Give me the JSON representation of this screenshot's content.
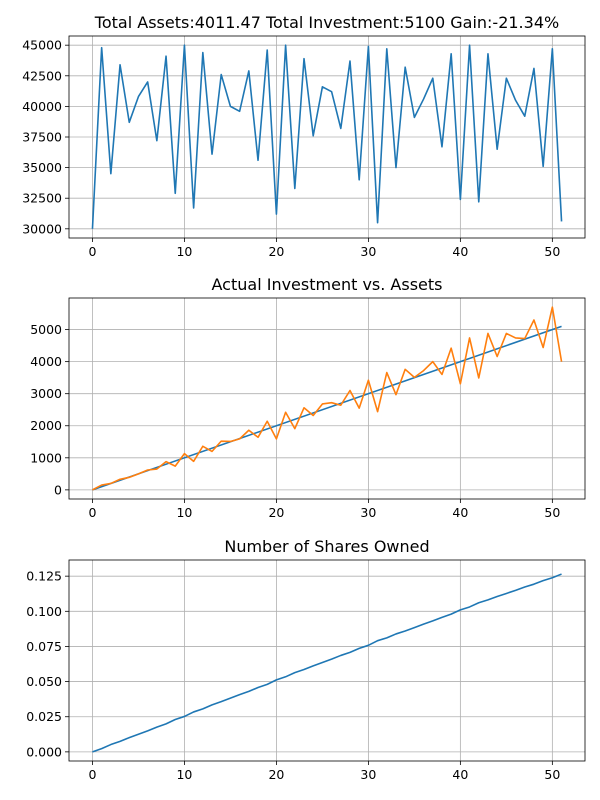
{
  "chart_data": [
    {
      "type": "line",
      "title": "Total Assets:4011.47  Total Investment:5100  Gain:-21.34%",
      "xlabel": "",
      "ylabel": "",
      "xlim": [
        -2.55,
        53.55
      ],
      "ylim": [
        29250,
        45750
      ],
      "grid": true,
      "x_ticks": [
        0,
        10,
        20,
        30,
        40,
        50
      ],
      "y_ticks": [
        30000,
        32500,
        35000,
        37500,
        40000,
        42500,
        45000
      ],
      "series": [
        {
          "color": "#1f77b4",
          "x": [
            0,
            1,
            2,
            3,
            4,
            5,
            6,
            7,
            8,
            9,
            10,
            11,
            12,
            13,
            14,
            15,
            16,
            17,
            18,
            19,
            20,
            21,
            22,
            23,
            24,
            25,
            26,
            27,
            28,
            29,
            30,
            31,
            32,
            33,
            34,
            35,
            36,
            37,
            38,
            39,
            40,
            41,
            42,
            43,
            44,
            45,
            46,
            47,
            48,
            49,
            50,
            51
          ],
          "y": [
            30000,
            44800,
            34500,
            43400,
            38700,
            40800,
            42000,
            37200,
            44100,
            32900,
            45000,
            31700,
            44400,
            36100,
            42600,
            40000,
            39600,
            42900,
            35600,
            44600,
            31200,
            45000,
            33300,
            43900,
            37600,
            41600,
            41200,
            38200,
            43700,
            34000,
            44900,
            30500,
            44700,
            35000,
            43200,
            39100,
            40600,
            42300,
            36700,
            44300,
            32400,
            45000,
            32200,
            44300,
            36500,
            42300,
            40500,
            39200,
            43100,
            35100,
            44700,
            30600
          ]
        }
      ]
    },
    {
      "type": "line",
      "title": "Actual Investment vs. Assets",
      "xlabel": "",
      "ylabel": "",
      "xlim": [
        -2.55,
        53.55
      ],
      "ylim": [
        -285,
        5985
      ],
      "grid": true,
      "x_ticks": [
        0,
        10,
        20,
        30,
        40,
        50
      ],
      "y_ticks": [
        0,
        1000,
        2000,
        3000,
        4000,
        5000
      ],
      "series": [
        {
          "color": "#1f77b4",
          "x": [
            0,
            51
          ],
          "y": [
            0,
            5100
          ]
        },
        {
          "color": "#ff7f0e",
          "x": [
            0,
            1,
            2,
            3,
            4,
            5,
            6,
            7,
            8,
            9,
            10,
            11,
            12,
            13,
            14,
            15,
            16,
            17,
            18,
            19,
            20,
            21,
            22,
            23,
            24,
            25,
            26,
            27,
            28,
            29,
            30,
            31,
            32,
            33,
            34,
            35,
            36,
            37,
            38,
            39,
            40,
            41,
            42,
            43,
            44,
            45,
            46,
            47,
            48,
            49,
            50,
            51
          ],
          "y": [
            0,
            150,
            200,
            330,
            390,
            500,
            620,
            650,
            880,
            740,
            1130,
            890,
            1360,
            1200,
            1520,
            1510,
            1590,
            1860,
            1640,
            2140,
            1590,
            2420,
            1910,
            2560,
            2320,
            2680,
            2720,
            2640,
            3100,
            2550,
            3420,
            2440,
            3660,
            2970,
            3760,
            3510,
            3720,
            4000,
            3600,
            4420,
            3310,
            4740,
            3490,
            4880,
            4160,
            4880,
            4740,
            4720,
            5300,
            4440,
            5700,
            4000
          ]
        }
      ]
    },
    {
      "type": "line",
      "title": "Number of Shares Owned",
      "xlabel": "",
      "ylabel": "",
      "xlim": [
        -2.55,
        53.55
      ],
      "ylim": [
        -0.0065,
        0.1365
      ],
      "grid": true,
      "x_ticks": [
        0,
        10,
        20,
        30,
        40,
        50
      ],
      "y_ticks": [
        0.0,
        0.025,
        0.05,
        0.075,
        0.1,
        0.125
      ],
      "y_tick_labels": [
        "0.000",
        "0.025",
        "0.050",
        "0.075",
        "0.100",
        "0.125"
      ],
      "series": [
        {
          "color": "#1f77b4",
          "x": [
            0,
            1,
            2,
            3,
            4,
            5,
            6,
            7,
            8,
            9,
            10,
            11,
            12,
            13,
            14,
            15,
            16,
            17,
            18,
            19,
            20,
            21,
            22,
            23,
            24,
            25,
            26,
            27,
            28,
            29,
            30,
            31,
            32,
            33,
            34,
            35,
            36,
            37,
            38,
            39,
            40,
            41,
            42,
            43,
            44,
            45,
            46,
            47,
            48,
            49,
            50,
            51
          ],
          "y": [
            0,
            0.0023,
            0.0052,
            0.0075,
            0.0101,
            0.0125,
            0.0149,
            0.0176,
            0.0199,
            0.023,
            0.0252,
            0.0284,
            0.0306,
            0.0334,
            0.0357,
            0.0382,
            0.0407,
            0.043,
            0.0458,
            0.048,
            0.0512,
            0.0534,
            0.0564,
            0.0586,
            0.0612,
            0.0636,
            0.066,
            0.0686,
            0.0708,
            0.0736,
            0.0758,
            0.0791,
            0.0811,
            0.0839,
            0.086,
            0.0884,
            0.0909,
            0.0932,
            0.0957,
            0.098,
            0.101,
            0.1031,
            0.1061,
            0.1081,
            0.1105,
            0.1127,
            0.1149,
            0.1173,
            0.1193,
            0.1218,
            0.1239,
            0.1265
          ]
        }
      ]
    }
  ]
}
